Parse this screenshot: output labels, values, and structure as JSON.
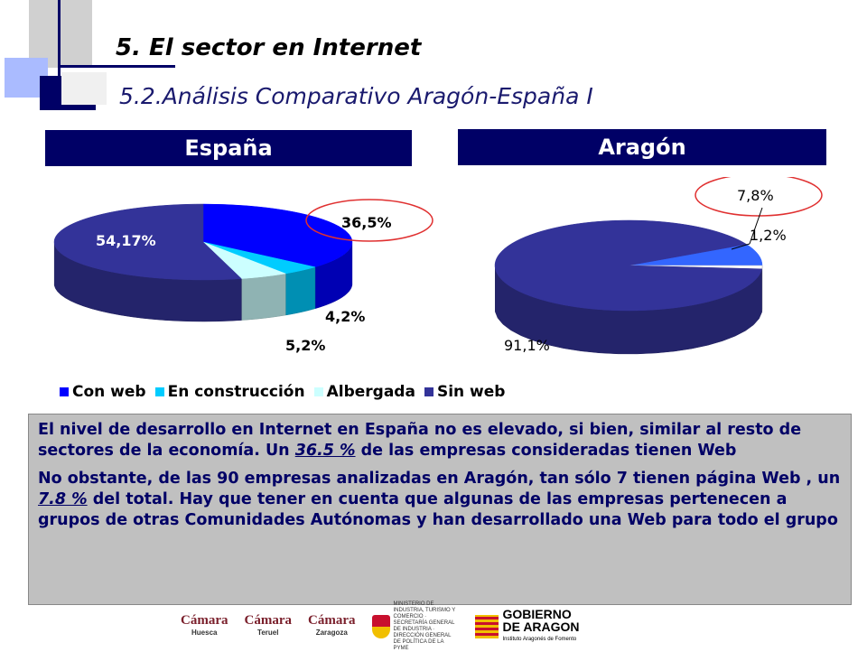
{
  "slide": {
    "title": "5. El sector en Internet",
    "subtitle": "5.2.Análisis Comparativo Aragón-España I"
  },
  "headers": {
    "left": "España",
    "right": "Aragón"
  },
  "chart_data": [
    {
      "type": "pie",
      "title": "España",
      "categories": [
        "Con web",
        "En construcción",
        "Albergada",
        "Sin web"
      ],
      "values": [
        36.5,
        4.2,
        5.2,
        54.17
      ],
      "labels": [
        "36,5%",
        "4,2%",
        "5,2%",
        "54,17%"
      ],
      "colors": [
        "#0000ff",
        "#00ccff",
        "#ccffff",
        "#333399"
      ]
    },
    {
      "type": "pie",
      "title": "Aragón",
      "categories": [
        "Con web",
        "En construcción",
        "Sin web"
      ],
      "values": [
        7.8,
        1.2,
        91.1
      ],
      "labels": [
        "7,8%",
        "1,2%",
        "91,1%"
      ],
      "colors": [
        "#3366ff",
        "#ffffff",
        "#333399"
      ]
    }
  ],
  "legend": [
    {
      "label": "Con web",
      "color": "#0000ff"
    },
    {
      "label": "En construcción",
      "color": "#00ccff"
    },
    {
      "label": "Albergada",
      "color": "#ccffff"
    },
    {
      "label": "Sin web",
      "color": "#333399"
    }
  ],
  "text": {
    "p1_before": "El nivel de desarrollo en Internet en España no es elevado, si bien, similar al resto de sectores de la economía. Un ",
    "p1_highlight": "36.5 %",
    "p1_after": " de las empresas consideradas tienen Web",
    "p2_before": "No obstante, de las 90 empresas analizadas en Aragón, tan sólo 7 tienen página Web , un ",
    "p2_highlight": "7.8 %",
    "p2_after": " del total. Hay que tener en cuenta que algunas de las empresas pertenecen a grupos de otras Comunidades Autónomas y han desarrollado una Web para todo el grupo"
  },
  "logos": {
    "camara1": {
      "name": "Cámara",
      "city": "Huesca"
    },
    "camara2": {
      "name": "Cámara",
      "city": "Teruel"
    },
    "camara3": {
      "name": "Cámara",
      "city": "Zaragoza"
    },
    "ministry": "MINISTERIO DE INDUSTRIA, TURISMO Y COMERCIO · SECRETARÍA GENERAL DE INDUSTRIA · DIRECCIÓN GENERAL DE POLÍTICA DE LA PYME",
    "gobierno_line1": "GOBIERNO",
    "gobierno_line2": "DE ARAGON",
    "gobierno_sub": "Instituto Aragonés de Fomento"
  }
}
